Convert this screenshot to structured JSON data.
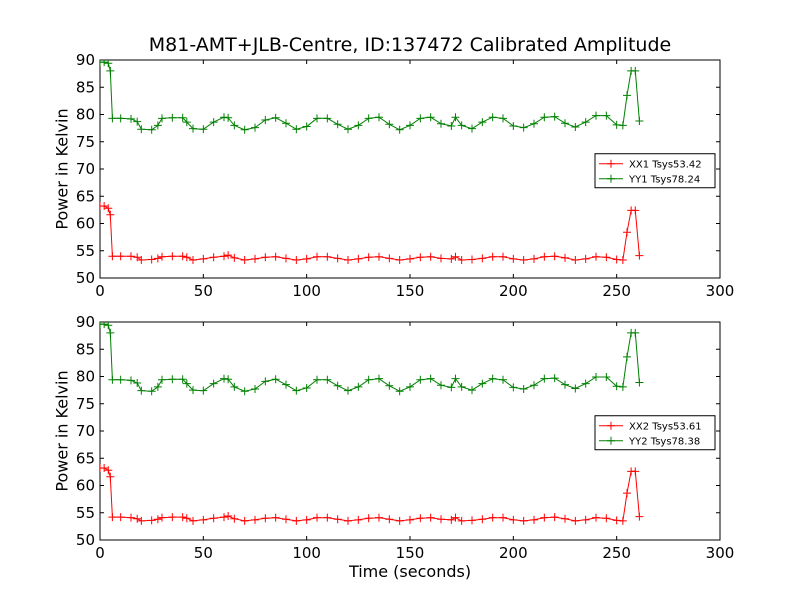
{
  "figure": {
    "title": "M81-AMT+JLB-Centre, ID:137472 Calibrated Amplitude",
    "xlabel": "Time (seconds)"
  },
  "chart_data": [
    {
      "type": "line",
      "title": "M81-AMT+JLB-Centre, ID:137472 Calibrated Amplitude",
      "xlabel": "",
      "ylabel": "Power in Kelvin",
      "xlim": [
        0,
        300
      ],
      "ylim": [
        50,
        90
      ],
      "xticks": [
        0,
        50,
        100,
        150,
        200,
        250,
        300
      ],
      "yticks": [
        50,
        55,
        60,
        65,
        70,
        75,
        80,
        85,
        90
      ],
      "legend_position": "center-right",
      "series": [
        {
          "name": "XX1 Tsys53.42",
          "color": "#ff0000",
          "marker": "plus",
          "x": [
            0,
            2,
            4,
            5,
            6,
            10,
            15,
            18,
            20,
            25,
            28,
            30,
            35,
            40,
            42,
            45,
            50,
            55,
            60,
            62,
            65,
            70,
            75,
            80,
            85,
            90,
            95,
            100,
            105,
            110,
            115,
            120,
            125,
            130,
            135,
            140,
            145,
            150,
            155,
            160,
            165,
            170,
            172,
            175,
            180,
            185,
            190,
            195,
            200,
            205,
            210,
            215,
            220,
            225,
            230,
            235,
            240,
            245,
            250,
            253,
            255,
            257,
            259,
            261
          ],
          "values": [
            63.2,
            63.2,
            62.8,
            61.6,
            54.0,
            54.0,
            54.0,
            53.8,
            53.3,
            53.4,
            53.6,
            53.9,
            54.0,
            54.0,
            53.8,
            53.3,
            53.5,
            53.8,
            54.0,
            54.2,
            53.7,
            53.3,
            53.5,
            53.8,
            53.9,
            53.6,
            53.3,
            53.5,
            53.9,
            53.9,
            53.6,
            53.3,
            53.5,
            53.8,
            53.9,
            53.6,
            53.3,
            53.5,
            53.8,
            53.9,
            53.6,
            53.5,
            53.9,
            53.3,
            53.4,
            53.6,
            53.9,
            53.9,
            53.5,
            53.3,
            53.5,
            53.9,
            54.0,
            53.7,
            53.3,
            53.5,
            53.9,
            53.8,
            53.4,
            53.3,
            58.4,
            62.4,
            62.4,
            54.1
          ]
        },
        {
          "name": "YY1 Tsys78.24",
          "color": "#008000",
          "marker": "plus",
          "x": [
            0,
            2,
            4,
            5,
            6,
            10,
            15,
            18,
            20,
            25,
            28,
            30,
            35,
            40,
            42,
            45,
            50,
            55,
            60,
            62,
            65,
            70,
            75,
            80,
            85,
            90,
            95,
            100,
            105,
            110,
            115,
            120,
            125,
            130,
            135,
            140,
            145,
            150,
            155,
            160,
            165,
            170,
            172,
            175,
            180,
            185,
            190,
            195,
            200,
            205,
            210,
            215,
            220,
            225,
            230,
            235,
            240,
            245,
            250,
            253,
            255,
            257,
            259,
            261
          ],
          "values": [
            89.6,
            89.6,
            89.4,
            88.0,
            79.3,
            79.3,
            79.2,
            78.7,
            77.3,
            77.2,
            78.0,
            79.3,
            79.4,
            79.4,
            78.6,
            77.4,
            77.3,
            78.6,
            79.5,
            79.4,
            78.0,
            77.2,
            77.6,
            79.0,
            79.4,
            78.4,
            77.3,
            77.8,
            79.3,
            79.3,
            78.2,
            77.3,
            78.0,
            79.3,
            79.5,
            78.2,
            77.2,
            78.0,
            79.3,
            79.5,
            78.3,
            77.9,
            79.5,
            78.0,
            77.4,
            78.6,
            79.5,
            79.3,
            77.9,
            77.6,
            78.3,
            79.5,
            79.6,
            78.4,
            77.7,
            78.6,
            79.8,
            79.8,
            78.1,
            78.0,
            83.5,
            88.0,
            88.0,
            78.8
          ]
        }
      ]
    },
    {
      "type": "line",
      "title": "",
      "xlabel": "Time (seconds)",
      "ylabel": "Power in Kelvin",
      "xlim": [
        0,
        300
      ],
      "ylim": [
        50,
        90
      ],
      "xticks": [
        0,
        50,
        100,
        150,
        200,
        250,
        300
      ],
      "yticks": [
        50,
        55,
        60,
        65,
        70,
        75,
        80,
        85,
        90
      ],
      "legend_position": "center-right",
      "series": [
        {
          "name": "XX2 Tsys53.61",
          "color": "#ff0000",
          "marker": "plus",
          "x": [
            0,
            2,
            4,
            5,
            6,
            10,
            15,
            18,
            20,
            25,
            28,
            30,
            35,
            40,
            42,
            45,
            50,
            55,
            60,
            62,
            65,
            70,
            75,
            80,
            85,
            90,
            95,
            100,
            105,
            110,
            115,
            120,
            125,
            130,
            135,
            140,
            145,
            150,
            155,
            160,
            165,
            170,
            172,
            175,
            180,
            185,
            190,
            195,
            200,
            205,
            210,
            215,
            220,
            225,
            230,
            235,
            240,
            245,
            250,
            253,
            255,
            257,
            259,
            261
          ],
          "values": [
            63.2,
            63.2,
            62.8,
            61.6,
            54.2,
            54.2,
            54.1,
            53.9,
            53.5,
            53.6,
            53.8,
            54.1,
            54.2,
            54.2,
            54.0,
            53.5,
            53.7,
            54.0,
            54.2,
            54.4,
            53.9,
            53.5,
            53.7,
            54.0,
            54.1,
            53.8,
            53.5,
            53.7,
            54.1,
            54.1,
            53.8,
            53.5,
            53.7,
            54.0,
            54.1,
            53.8,
            53.5,
            53.7,
            54.0,
            54.1,
            53.8,
            53.7,
            54.1,
            53.5,
            53.6,
            53.8,
            54.1,
            54.1,
            53.7,
            53.5,
            53.7,
            54.1,
            54.2,
            53.9,
            53.5,
            53.7,
            54.1,
            54.0,
            53.6,
            53.5,
            58.6,
            62.6,
            62.6,
            54.3
          ]
        },
        {
          "name": "YY2 Tsys78.38",
          "color": "#008000",
          "marker": "plus",
          "x": [
            0,
            2,
            4,
            5,
            6,
            10,
            15,
            18,
            20,
            25,
            28,
            30,
            35,
            40,
            42,
            45,
            50,
            55,
            60,
            62,
            65,
            70,
            75,
            80,
            85,
            90,
            95,
            100,
            105,
            110,
            115,
            120,
            125,
            130,
            135,
            140,
            145,
            150,
            155,
            160,
            165,
            170,
            172,
            175,
            180,
            185,
            190,
            195,
            200,
            205,
            210,
            215,
            220,
            225,
            230,
            235,
            240,
            245,
            250,
            253,
            255,
            257,
            259,
            261
          ],
          "values": [
            89.6,
            89.6,
            89.4,
            88.0,
            79.4,
            79.4,
            79.3,
            78.8,
            77.4,
            77.3,
            78.1,
            79.4,
            79.5,
            79.5,
            78.7,
            77.5,
            77.4,
            78.7,
            79.6,
            79.5,
            78.1,
            77.3,
            77.7,
            79.1,
            79.5,
            78.5,
            77.4,
            77.9,
            79.4,
            79.4,
            78.3,
            77.4,
            78.1,
            79.4,
            79.6,
            78.3,
            77.3,
            78.1,
            79.4,
            79.6,
            78.4,
            78.0,
            79.6,
            78.1,
            77.5,
            78.7,
            79.6,
            79.4,
            78.0,
            77.7,
            78.4,
            79.6,
            79.7,
            78.5,
            77.8,
            78.7,
            79.9,
            79.9,
            78.2,
            78.1,
            83.6,
            88.0,
            88.0,
            78.9
          ]
        }
      ]
    }
  ]
}
